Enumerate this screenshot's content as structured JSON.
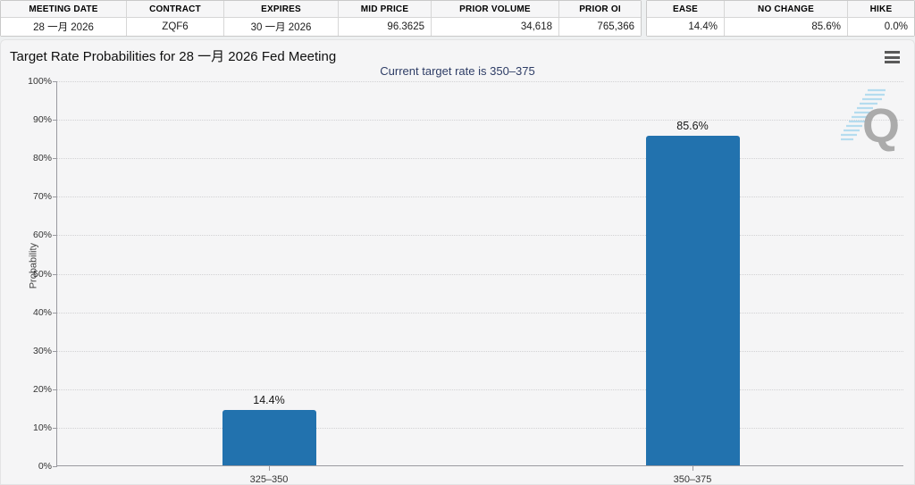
{
  "quote_table": {
    "columns": [
      "MEETING DATE",
      "CONTRACT",
      "EXPIRES",
      "MID PRICE",
      "PRIOR VOLUME",
      "PRIOR OI"
    ],
    "values": [
      "28 一月 2026",
      "ZQF6",
      "30 一月 2026",
      "96.3625",
      "34,618",
      "765,366"
    ]
  },
  "probability_table": {
    "columns": [
      "EASE",
      "NO CHANGE",
      "HIKE"
    ],
    "values": [
      "14.4%",
      "85.6%",
      "0.0%"
    ]
  },
  "chart": {
    "title": "Target Rate Probabilities for 28 一月 2026 Fed Meeting",
    "subtitle": "Current target rate is 350–375",
    "menu_icon": "hamburger-menu",
    "watermark_letter": "Q"
  },
  "chart_data": {
    "type": "bar",
    "categories": [
      "325–350",
      "350–375"
    ],
    "values": [
      14.4,
      85.6
    ],
    "data_labels": [
      "14.4%",
      "85.6%"
    ],
    "title": "Target Rate Probabilities for 28 一月 2026 Fed Meeting",
    "subtitle": "Current target rate is 350–375",
    "xlabel": "",
    "ylabel": "Probability",
    "ylim": [
      0,
      100
    ],
    "ytick_step": 10,
    "ytick_format": "percent",
    "grid": "horizontal-dotted",
    "legend": "none",
    "bar_color": "#2272ae"
  },
  "colors": {
    "bar": "#2272ae",
    "subtitle": "#2e3d66",
    "card_bg": "#f5f5f6",
    "axis": "#9a9aa0"
  }
}
